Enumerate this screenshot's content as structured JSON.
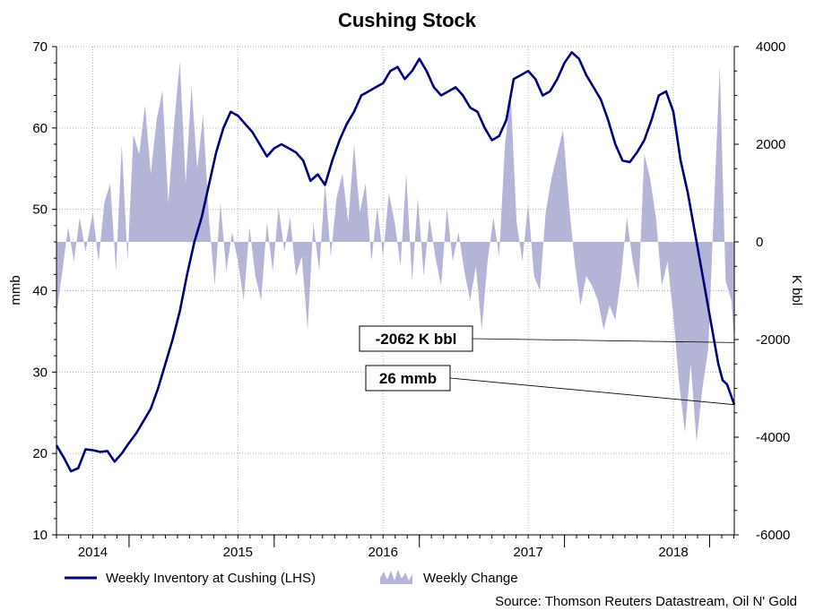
{
  "chart_data": {
    "type": "line",
    "title": "Cushing Stock",
    "ylabel": "mmb",
    "y2label": "K bbl",
    "ylim": [
      10,
      70
    ],
    "y2lim": [
      -6000,
      4000
    ],
    "yticks": [
      "10",
      "20",
      "30",
      "40",
      "50",
      "60",
      "70"
    ],
    "y2ticks": [
      "-6000",
      "-4000",
      "-2000",
      "0",
      "2000",
      "4000"
    ],
    "x_range": [
      2013.75,
      2018.42
    ],
    "year_ticks": [
      {
        "label": "2014",
        "label_x": 2014.0
      },
      {
        "label": "2015",
        "label_x": 2015.0
      },
      {
        "label": "2016",
        "label_x": 2016.0
      },
      {
        "label": "2017",
        "label_x": 2017.0
      },
      {
        "label": "2018",
        "label_x": 2018.0
      }
    ],
    "year_boundaries": [
      2014.25,
      2015.25,
      2016.25,
      2017.25,
      2018.25
    ],
    "x_gridlines": [
      2014.0,
      2015.0,
      2016.0,
      2017.0,
      2018.0
    ],
    "series": [
      {
        "name": "Weekly Inventory at Cushing (LHS)",
        "type": "line",
        "axis": "left",
        "color": "#00007a",
        "points": [
          [
            2013.75,
            21
          ],
          [
            2013.8,
            19.5
          ],
          [
            2013.85,
            17.8
          ],
          [
            2013.9,
            18.2
          ],
          [
            2013.95,
            20.5
          ],
          [
            2014.0,
            20.4
          ],
          [
            2014.05,
            20.2
          ],
          [
            2014.1,
            20.3
          ],
          [
            2014.15,
            19.0
          ],
          [
            2014.2,
            20.0
          ],
          [
            2014.25,
            21.3
          ],
          [
            2014.3,
            22.5
          ],
          [
            2014.35,
            24.0
          ],
          [
            2014.4,
            25.5
          ],
          [
            2014.45,
            28
          ],
          [
            2014.5,
            31
          ],
          [
            2014.55,
            34
          ],
          [
            2014.6,
            37.5
          ],
          [
            2014.65,
            42
          ],
          [
            2014.7,
            46
          ],
          [
            2014.75,
            49
          ],
          [
            2014.8,
            53
          ],
          [
            2014.85,
            57
          ],
          [
            2014.9,
            60
          ],
          [
            2014.95,
            62
          ],
          [
            2015.0,
            61.5
          ],
          [
            2015.05,
            60.5
          ],
          [
            2015.1,
            59.5
          ],
          [
            2015.15,
            58
          ],
          [
            2015.2,
            56.5
          ],
          [
            2015.25,
            57.5
          ],
          [
            2015.3,
            58
          ],
          [
            2015.35,
            57.5
          ],
          [
            2015.4,
            57
          ],
          [
            2015.45,
            56
          ],
          [
            2015.5,
            53.5
          ],
          [
            2015.55,
            54.3
          ],
          [
            2015.6,
            53
          ],
          [
            2015.65,
            56
          ],
          [
            2015.7,
            58.5
          ],
          [
            2015.75,
            60.5
          ],
          [
            2015.8,
            62
          ],
          [
            2015.85,
            64
          ],
          [
            2015.9,
            64.5
          ],
          [
            2015.95,
            65
          ],
          [
            2016.0,
            65.5
          ],
          [
            2016.05,
            67
          ],
          [
            2016.1,
            67.5
          ],
          [
            2016.15,
            66
          ],
          [
            2016.2,
            67
          ],
          [
            2016.25,
            68.5
          ],
          [
            2016.3,
            67
          ],
          [
            2016.35,
            65
          ],
          [
            2016.4,
            64
          ],
          [
            2016.45,
            64.5
          ],
          [
            2016.5,
            65
          ],
          [
            2016.55,
            64
          ],
          [
            2016.6,
            62.5
          ],
          [
            2016.65,
            62
          ],
          [
            2016.7,
            60
          ],
          [
            2016.75,
            58.5
          ],
          [
            2016.8,
            59
          ],
          [
            2016.85,
            61
          ],
          [
            2016.9,
            66
          ],
          [
            2016.95,
            66.5
          ],
          [
            2017.0,
            67
          ],
          [
            2017.05,
            66
          ],
          [
            2017.1,
            64
          ],
          [
            2017.15,
            64.5
          ],
          [
            2017.2,
            66
          ],
          [
            2017.25,
            68
          ],
          [
            2017.3,
            69.3
          ],
          [
            2017.35,
            68.5
          ],
          [
            2017.4,
            66.5
          ],
          [
            2017.45,
            65
          ],
          [
            2017.5,
            63.5
          ],
          [
            2017.55,
            61
          ],
          [
            2017.6,
            58
          ],
          [
            2017.65,
            56
          ],
          [
            2017.7,
            55.8
          ],
          [
            2017.75,
            57
          ],
          [
            2017.8,
            58.5
          ],
          [
            2017.85,
            61
          ],
          [
            2017.9,
            64
          ],
          [
            2017.95,
            64.5
          ],
          [
            2018.0,
            62
          ],
          [
            2018.05,
            56
          ],
          [
            2018.1,
            52
          ],
          [
            2018.15,
            47
          ],
          [
            2018.2,
            42
          ],
          [
            2018.25,
            37
          ],
          [
            2018.28,
            34
          ],
          [
            2018.31,
            31
          ],
          [
            2018.34,
            29
          ],
          [
            2018.37,
            28.5
          ],
          [
            2018.42,
            26
          ]
        ]
      },
      {
        "name": "Weekly Change",
        "type": "area",
        "axis": "right",
        "color": "#b4b4d7",
        "points": [
          [
            2013.75,
            -1500
          ],
          [
            2013.79,
            -600
          ],
          [
            2013.83,
            300
          ],
          [
            2013.87,
            -400
          ],
          [
            2013.91,
            500
          ],
          [
            2013.95,
            -200
          ],
          [
            2014.0,
            600
          ],
          [
            2014.04,
            -400
          ],
          [
            2014.08,
            800
          ],
          [
            2014.12,
            1200
          ],
          [
            2014.16,
            -600
          ],
          [
            2014.2,
            2000
          ],
          [
            2014.24,
            -400
          ],
          [
            2014.28,
            2200
          ],
          [
            2014.32,
            1800
          ],
          [
            2014.36,
            2800
          ],
          [
            2014.4,
            1400
          ],
          [
            2014.44,
            2500
          ],
          [
            2014.48,
            3100
          ],
          [
            2014.52,
            800
          ],
          [
            2014.56,
            2400
          ],
          [
            2014.6,
            3700
          ],
          [
            2014.64,
            1200
          ],
          [
            2014.68,
            3200
          ],
          [
            2014.72,
            1500
          ],
          [
            2014.76,
            2600
          ],
          [
            2014.8,
            500
          ],
          [
            2014.84,
            -900
          ],
          [
            2014.88,
            800
          ],
          [
            2014.92,
            -600
          ],
          [
            2014.96,
            200
          ],
          [
            2015.0,
            -400
          ],
          [
            2015.04,
            -1200
          ],
          [
            2015.08,
            300
          ],
          [
            2015.12,
            -700
          ],
          [
            2015.16,
            -1200
          ],
          [
            2015.2,
            400
          ],
          [
            2015.24,
            -600
          ],
          [
            2015.28,
            700
          ],
          [
            2015.32,
            -200
          ],
          [
            2015.36,
            500
          ],
          [
            2015.4,
            -700
          ],
          [
            2015.44,
            -300
          ],
          [
            2015.48,
            -1800
          ],
          [
            2015.52,
            400
          ],
          [
            2015.56,
            -600
          ],
          [
            2015.6,
            1200
          ],
          [
            2015.64,
            -300
          ],
          [
            2015.68,
            900
          ],
          [
            2015.72,
            1400
          ],
          [
            2015.76,
            400
          ],
          [
            2015.8,
            2000
          ],
          [
            2015.84,
            600
          ],
          [
            2015.88,
            1200
          ],
          [
            2015.92,
            -400
          ],
          [
            2015.96,
            700
          ],
          [
            2016.0,
            -300
          ],
          [
            2016.04,
            1000
          ],
          [
            2016.08,
            400
          ],
          [
            2016.12,
            -500
          ],
          [
            2016.16,
            1400
          ],
          [
            2016.2,
            -800
          ],
          [
            2016.24,
            900
          ],
          [
            2016.28,
            -700
          ],
          [
            2016.32,
            500
          ],
          [
            2016.36,
            -300
          ],
          [
            2016.4,
            -900
          ],
          [
            2016.44,
            700
          ],
          [
            2016.48,
            -400
          ],
          [
            2016.52,
            200
          ],
          [
            2016.56,
            -600
          ],
          [
            2016.6,
            -1200
          ],
          [
            2016.64,
            -500
          ],
          [
            2016.68,
            -1800
          ],
          [
            2016.72,
            -400
          ],
          [
            2016.76,
            500
          ],
          [
            2016.8,
            -300
          ],
          [
            2016.84,
            2000
          ],
          [
            2016.88,
            3000
          ],
          [
            2016.92,
            400
          ],
          [
            2016.96,
            -400
          ],
          [
            2017.0,
            800
          ],
          [
            2017.04,
            -700
          ],
          [
            2017.08,
            -1000
          ],
          [
            2017.12,
            600
          ],
          [
            2017.16,
            1300
          ],
          [
            2017.2,
            1800
          ],
          [
            2017.24,
            2300
          ],
          [
            2017.28,
            800
          ],
          [
            2017.32,
            -400
          ],
          [
            2017.36,
            -1300
          ],
          [
            2017.4,
            -700
          ],
          [
            2017.44,
            -900
          ],
          [
            2017.48,
            -1200
          ],
          [
            2017.52,
            -1800
          ],
          [
            2017.56,
            -1300
          ],
          [
            2017.6,
            -1600
          ],
          [
            2017.64,
            -700
          ],
          [
            2017.68,
            500
          ],
          [
            2017.72,
            -400
          ],
          [
            2017.76,
            -1000
          ],
          [
            2017.8,
            1800
          ],
          [
            2017.84,
            1300
          ],
          [
            2017.88,
            500
          ],
          [
            2017.92,
            -900
          ],
          [
            2017.96,
            -400
          ],
          [
            2018.0,
            -1500
          ],
          [
            2018.04,
            -2900
          ],
          [
            2018.08,
            -3900
          ],
          [
            2018.12,
            -2500
          ],
          [
            2018.16,
            -4100
          ],
          [
            2018.2,
            -3000
          ],
          [
            2018.24,
            -2200
          ],
          [
            2018.28,
            700
          ],
          [
            2018.32,
            3600
          ],
          [
            2018.36,
            -800
          ],
          [
            2018.4,
            -1200
          ],
          [
            2018.42,
            -2062
          ]
        ]
      }
    ],
    "legend": [
      {
        "label": "Weekly Inventory at Cushing (LHS)",
        "kind": "line"
      },
      {
        "label": "Weekly Change",
        "kind": "area"
      }
    ],
    "annotations": [
      {
        "label": "-2062 K bbl",
        "target_axis": "right",
        "target_x": 2018.42,
        "target_y": -2062
      },
      {
        "label": "26 mmb",
        "target_axis": "left",
        "target_x": 2018.42,
        "target_y": 26
      }
    ],
    "source": "Source: Thomson Reuters Datastream, Oil N' Gold"
  }
}
